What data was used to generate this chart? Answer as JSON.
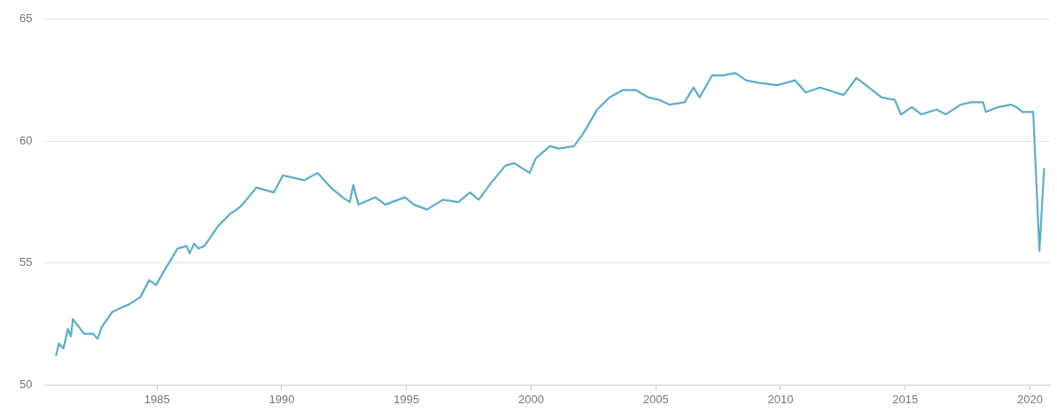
{
  "chart_data": {
    "type": "line",
    "line_style": "solid",
    "marker": "none",
    "grid": "y",
    "legend": false,
    "xlim": [
      1980.5,
      2020.8
    ],
    "xticks": [
      1985,
      1990,
      1995,
      2000,
      2005,
      2010,
      2015,
      2020
    ],
    "ylim": [
      50,
      65
    ],
    "yticks": [
      50,
      55,
      60,
      65
    ],
    "series": [
      {
        "color": "#5aaecb",
        "x": [
          1980.95,
          1981.07,
          1981.25,
          1981.43,
          1981.55,
          1981.63,
          1982.08,
          1982.44,
          1982.62,
          1982.8,
          1983.21,
          1983.63,
          1983.87,
          1984.33,
          1984.69,
          1984.96,
          1985.3,
          1985.83,
          1986.19,
          1986.31,
          1986.49,
          1986.66,
          1986.9,
          1987.44,
          1987.91,
          1988.33,
          1988.51,
          1988.98,
          1989.69,
          1990.05,
          1990.9,
          1991.44,
          1991.97,
          1992.44,
          1992.73,
          1992.87,
          1993.08,
          1993.76,
          1994.15,
          1994.94,
          1995.3,
          1995.83,
          1996.47,
          1997.08,
          1997.55,
          1997.9,
          1998.4,
          1998.97,
          1999.33,
          1999.94,
          2000.19,
          2000.76,
          2001.12,
          2001.72,
          2002.08,
          2002.65,
          2003.15,
          2003.69,
          2004.19,
          2004.69,
          2005.12,
          2005.55,
          2006.15,
          2006.51,
          2006.76,
          2007.26,
          2007.69,
          2008.19,
          2008.62,
          2009.12,
          2009.87,
          2010.58,
          2011.01,
          2011.58,
          2012.19,
          2012.54,
          2013.04,
          2013.55,
          2014.05,
          2014.58,
          2014.83,
          2015.26,
          2015.65,
          2016.26,
          2016.62,
          2017.22,
          2017.62,
          2018.12,
          2018.23,
          2018.73,
          2019.23,
          2019.46,
          2019.7,
          2020.13,
          2020.38,
          2020.57
        ],
        "values": [
          51.2,
          51.7,
          51.5,
          52.3,
          52.0,
          52.7,
          52.1,
          52.1,
          51.9,
          52.4,
          53.0,
          53.2,
          53.3,
          53.6,
          54.3,
          54.1,
          54.7,
          55.6,
          55.7,
          55.4,
          55.8,
          55.6,
          55.7,
          56.5,
          57.0,
          57.3,
          57.5,
          58.1,
          57.9,
          58.6,
          58.4,
          58.7,
          58.1,
          57.7,
          57.5,
          58.2,
          57.4,
          57.7,
          57.4,
          57.7,
          57.4,
          57.2,
          57.6,
          57.5,
          57.9,
          57.6,
          58.3,
          59.0,
          59.1,
          58.7,
          59.3,
          59.8,
          59.7,
          59.8,
          60.3,
          61.3,
          61.8,
          62.1,
          62.1,
          61.8,
          61.7,
          61.5,
          61.6,
          62.2,
          61.8,
          62.7,
          62.7,
          62.8,
          62.5,
          62.4,
          62.3,
          62.5,
          62.0,
          62.2,
          62.0,
          61.9,
          62.6,
          62.2,
          61.8,
          61.7,
          61.1,
          61.4,
          61.1,
          61.3,
          61.1,
          61.5,
          61.6,
          61.6,
          61.2,
          61.4,
          61.5,
          61.4,
          61.2,
          61.2,
          55.5,
          58.9
        ]
      }
    ]
  }
}
